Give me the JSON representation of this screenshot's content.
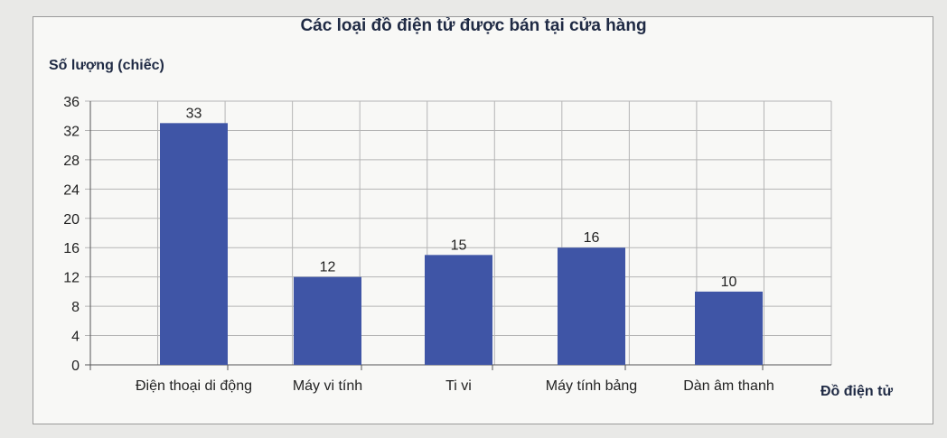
{
  "chart_data": {
    "type": "bar",
    "title": "Các loại đồ điện tử được bán tại cửa hàng",
    "ylabel": "Số lượng (chiếc)",
    "xlabel": "Đồ điện tử",
    "categories": [
      "Điện thoại di động",
      "Máy vi tính",
      "Ti vi",
      "Máy tính bảng",
      "Dàn âm thanh"
    ],
    "values": [
      33,
      12,
      15,
      16,
      10
    ],
    "data_labels": [
      "33",
      "12",
      "15",
      "16",
      "10"
    ],
    "ylim": [
      0,
      36
    ],
    "yticks": [
      0,
      4,
      8,
      12,
      16,
      20,
      24,
      28,
      32,
      36
    ],
    "grid": true,
    "legend": "none",
    "bar_color": "#3f55a6"
  }
}
